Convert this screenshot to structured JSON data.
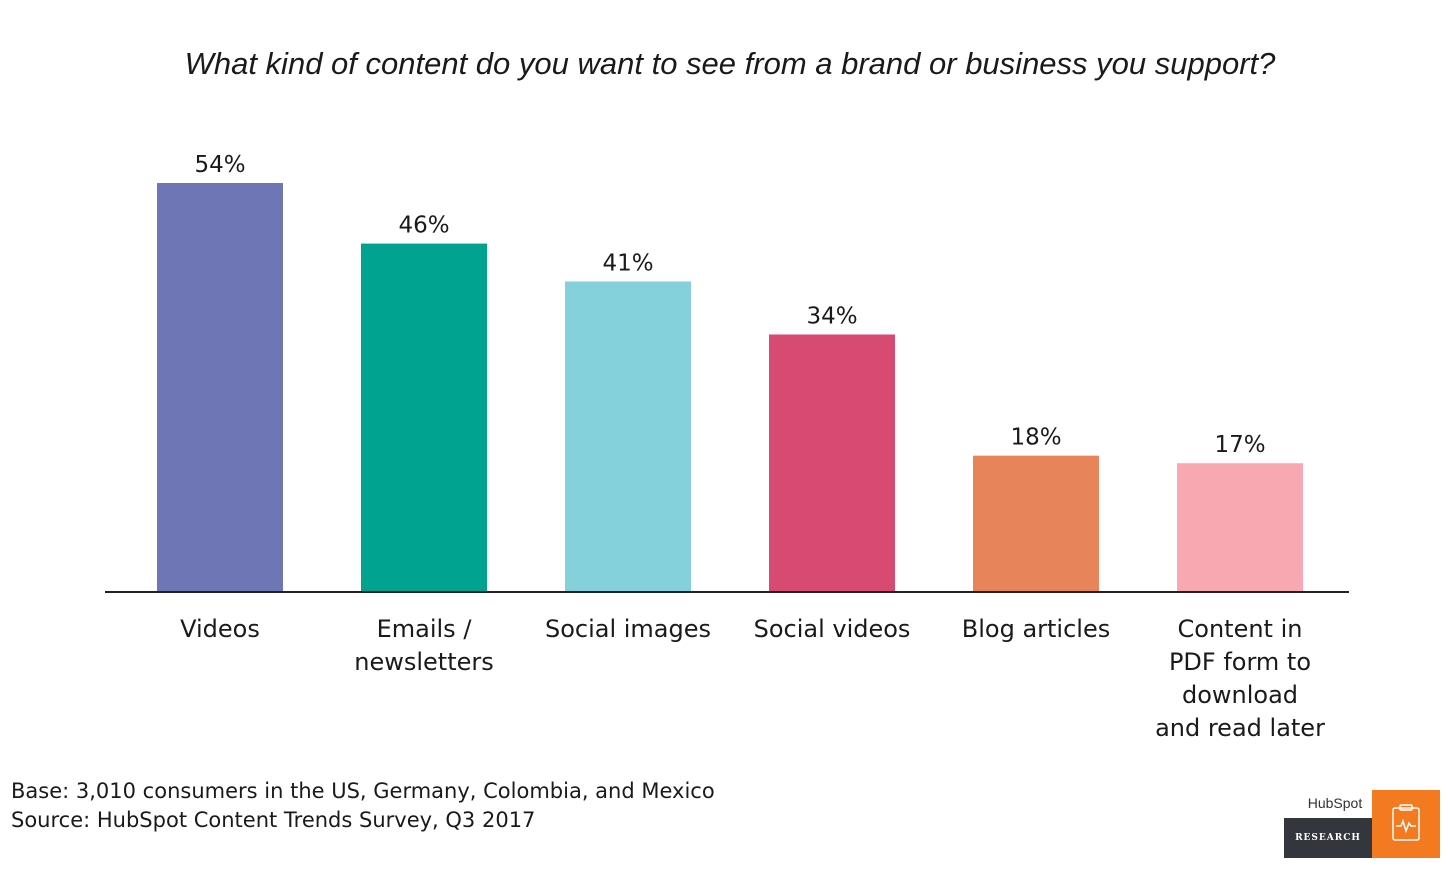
{
  "chart_data": {
    "type": "bar",
    "title": "What kind of content do you want to see from a brand or business you support?",
    "categories": [
      [
        "Videos"
      ],
      [
        "Emails /",
        "newsletters"
      ],
      [
        "Social images"
      ],
      [
        "Social videos"
      ],
      [
        "Blog articles"
      ],
      [
        "Content in",
        "PDF form to",
        "download",
        "and read later"
      ]
    ],
    "values": [
      54,
      46,
      41,
      34,
      18,
      17
    ],
    "value_labels": [
      "54%",
      "46%",
      "41%",
      "34%",
      "18%",
      "17%"
    ],
    "colors": [
      "#6e76b5",
      "#00a38f",
      "#84d1dc",
      "#d74a72",
      "#e8845a",
      "#f7a8b0"
    ],
    "ylim": [
      0,
      54
    ],
    "grid": false,
    "legend": "none"
  },
  "footnote": {
    "base": "Base: 3,010 consumers in the US, Germany, Colombia, and Mexico",
    "source": "Source: HubSpot Content Trends Survey, Q3 2017"
  },
  "logo": {
    "brand": "HubSpot",
    "label": "RESEARCH",
    "icon": "clipboard-pulse-icon"
  }
}
